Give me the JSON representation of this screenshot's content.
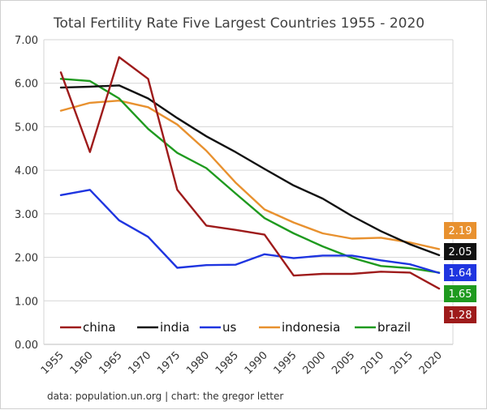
{
  "chart_data": {
    "type": "line",
    "title": "Total Fertility Rate Five Largest Countries 1955 - 2020",
    "source": "data: population.un.org | chart: the gregor letter",
    "x": [
      1955,
      1960,
      1965,
      1970,
      1975,
      1980,
      1985,
      1990,
      1995,
      2000,
      2005,
      2010,
      2015,
      2020
    ],
    "x_tick_labels": [
      "1955",
      "1960",
      "1965",
      "1970",
      "1975",
      "1980",
      "1985",
      "1990",
      "1995",
      "2000",
      "2005",
      "2010",
      "2015",
      "2020"
    ],
    "y_tick_labels": [
      "0.00",
      "1.00",
      "2.00",
      "3.00",
      "4.00",
      "5.00",
      "6.00",
      "7.00"
    ],
    "ylim": [
      0,
      7
    ],
    "grid": true,
    "legend_position": "bottom-left",
    "series": [
      {
        "name": "china",
        "color": "#9e1b1b",
        "values": [
          6.25,
          4.42,
          6.6,
          6.1,
          3.55,
          2.73,
          2.63,
          2.52,
          1.58,
          1.62,
          1.62,
          1.67,
          1.65,
          1.28
        ]
      },
      {
        "name": "india",
        "color": "#111111",
        "values": [
          5.9,
          5.92,
          5.95,
          5.65,
          5.2,
          4.78,
          4.42,
          4.03,
          3.65,
          3.35,
          2.95,
          2.6,
          2.3,
          2.05
        ]
      },
      {
        "name": "us",
        "color": "#1f35e0",
        "values": [
          3.43,
          3.55,
          2.85,
          2.47,
          1.76,
          1.82,
          1.83,
          2.07,
          1.98,
          2.04,
          2.04,
          1.93,
          1.84,
          1.64
        ]
      },
      {
        "name": "indonesia",
        "color": "#e8912f",
        "values": [
          5.37,
          5.55,
          5.6,
          5.45,
          5.05,
          4.45,
          3.72,
          3.1,
          2.8,
          2.55,
          2.43,
          2.45,
          2.34,
          2.19
        ]
      },
      {
        "name": "brazil",
        "color": "#1f9a1f",
        "values": [
          6.1,
          6.05,
          5.65,
          4.95,
          4.4,
          4.05,
          3.47,
          2.9,
          2.55,
          2.25,
          1.99,
          1.8,
          1.75,
          1.65
        ]
      }
    ],
    "end_labels": [
      {
        "text": "2.19",
        "series": "indonesia",
        "color": "#e8912f"
      },
      {
        "text": "2.05",
        "series": "india",
        "color": "#111111"
      },
      {
        "text": "1.64",
        "series": "us",
        "color": "#1f35e0"
      },
      {
        "text": "1.65",
        "series": "brazil",
        "color": "#1f9a1f"
      },
      {
        "text": "1.28",
        "series": "china",
        "color": "#9e1b1b"
      }
    ]
  }
}
